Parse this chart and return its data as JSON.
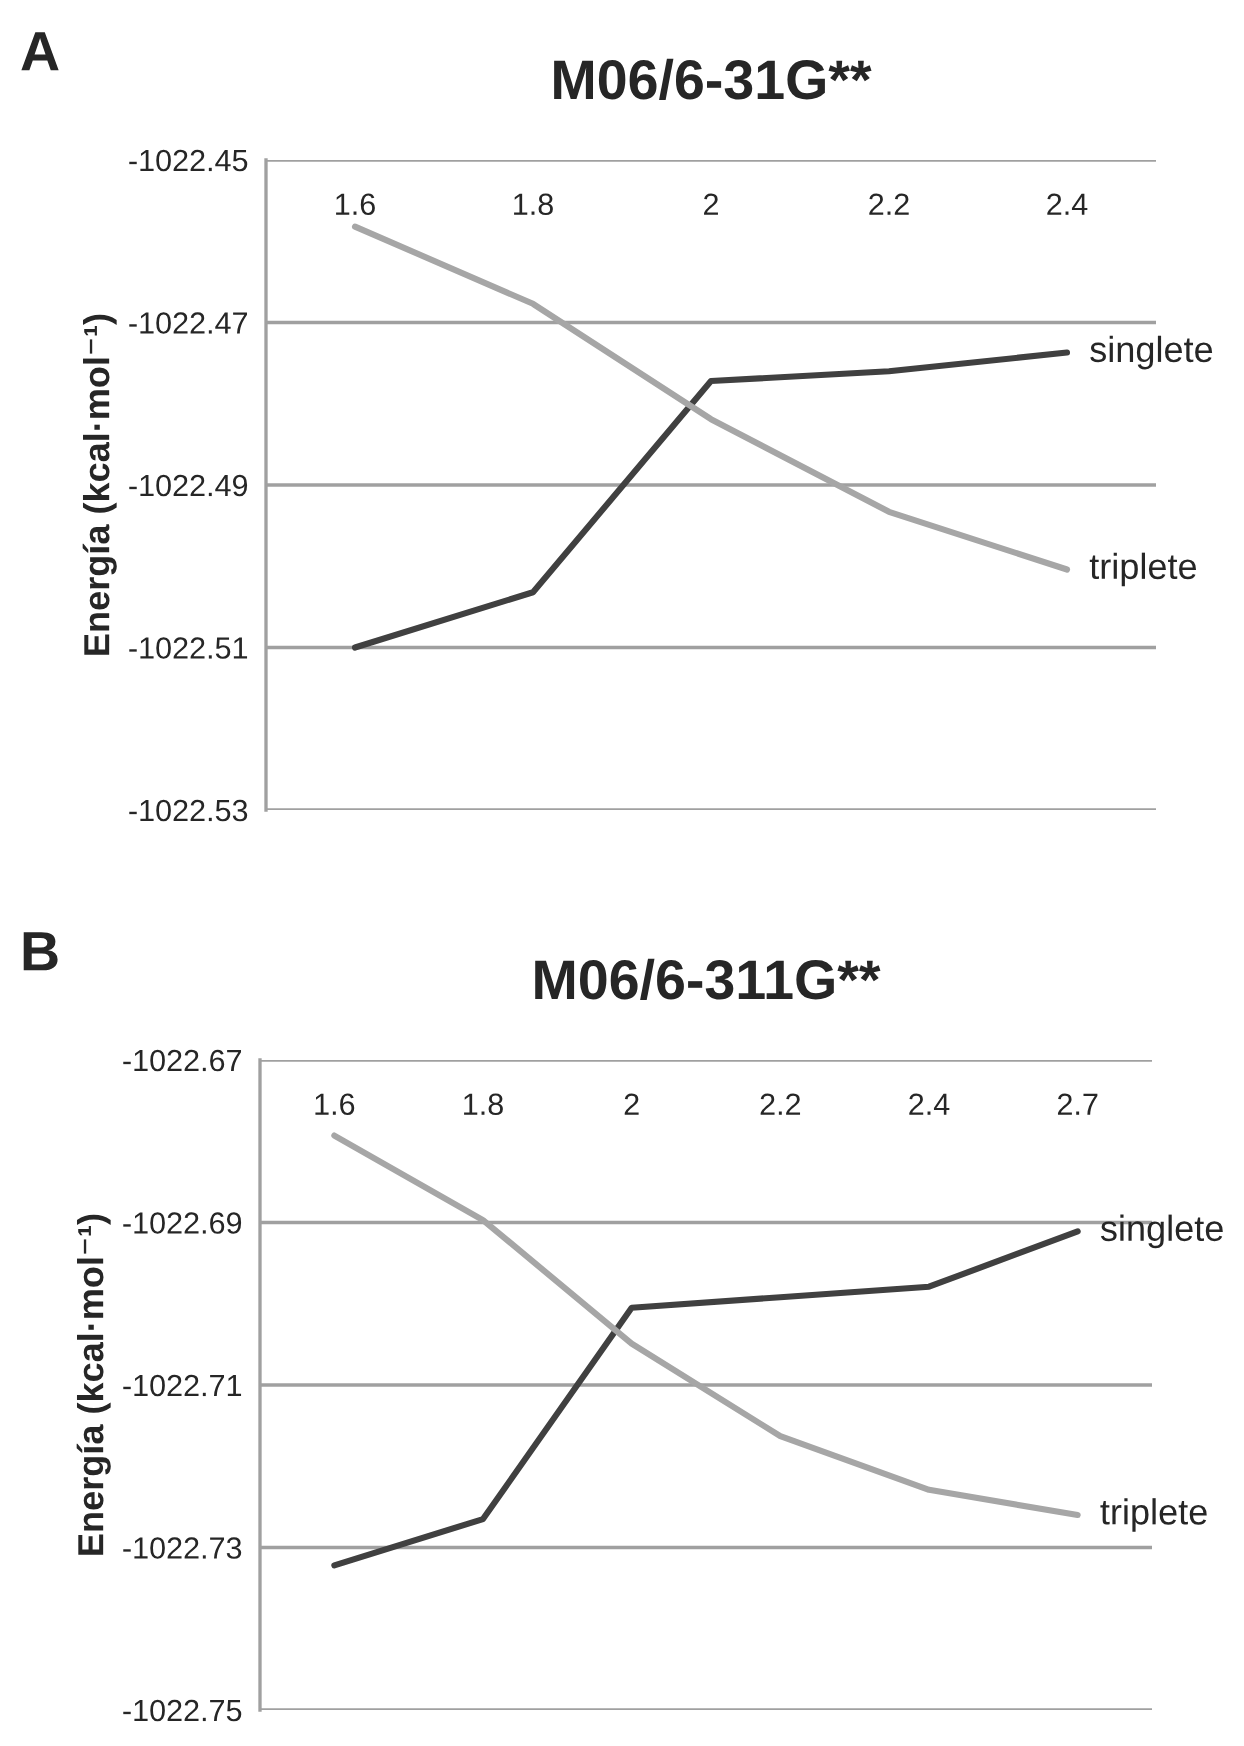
{
  "chart_data": [
    {
      "type": "line",
      "title": "M06/6-31G**",
      "ylabel": "Energía (kcal·mol⁻¹)",
      "annotations": [
        "A"
      ],
      "categories": [
        "1.6",
        "1.8",
        "2",
        "2.2",
        "2.4"
      ],
      "series": [
        {
          "name": "singlete",
          "color": "#404040",
          "values": [
            -1022.51,
            -1022.5032,
            -1022.4772,
            -1022.476,
            -1022.4737
          ]
        },
        {
          "name": "triplete",
          "color": "#a6a6a6",
          "values": [
            -1022.4582,
            -1022.4677,
            -1022.4819,
            -1022.4933,
            -1022.5004
          ]
        }
      ],
      "ylim": [
        -1022.53,
        -1022.45
      ],
      "yticks": [
        -1022.53,
        -1022.51,
        -1022.49,
        -1022.47,
        -1022.45
      ],
      "grid": "y",
      "legend": false,
      "marker": "none",
      "line_style": "solid"
    },
    {
      "type": "line",
      "title": "M06/6-311G**",
      "ylabel": "Energía (kcal·mol⁻¹)",
      "annotations": [
        "B"
      ],
      "categories": [
        "1.6",
        "1.8",
        "2",
        "2.2",
        "2.4",
        "2.7"
      ],
      "series": [
        {
          "name": "singlete",
          "color": "#404040",
          "values": [
            -1022.7322,
            -1022.7265,
            -1022.7005,
            -1022.6992,
            -1022.6979,
            -1022.6911
          ]
        },
        {
          "name": "triplete",
          "color": "#a6a6a6",
          "values": [
            -1022.6793,
            -1022.6897,
            -1022.7049,
            -1022.7163,
            -1022.7229,
            -1022.726
          ]
        }
      ],
      "ylim": [
        -1022.75,
        -1022.67
      ],
      "yticks": [
        -1022.75,
        -1022.73,
        -1022.71,
        -1022.69,
        -1022.67
      ],
      "grid": "y",
      "legend": false,
      "marker": "none",
      "line_style": "solid"
    }
  ]
}
